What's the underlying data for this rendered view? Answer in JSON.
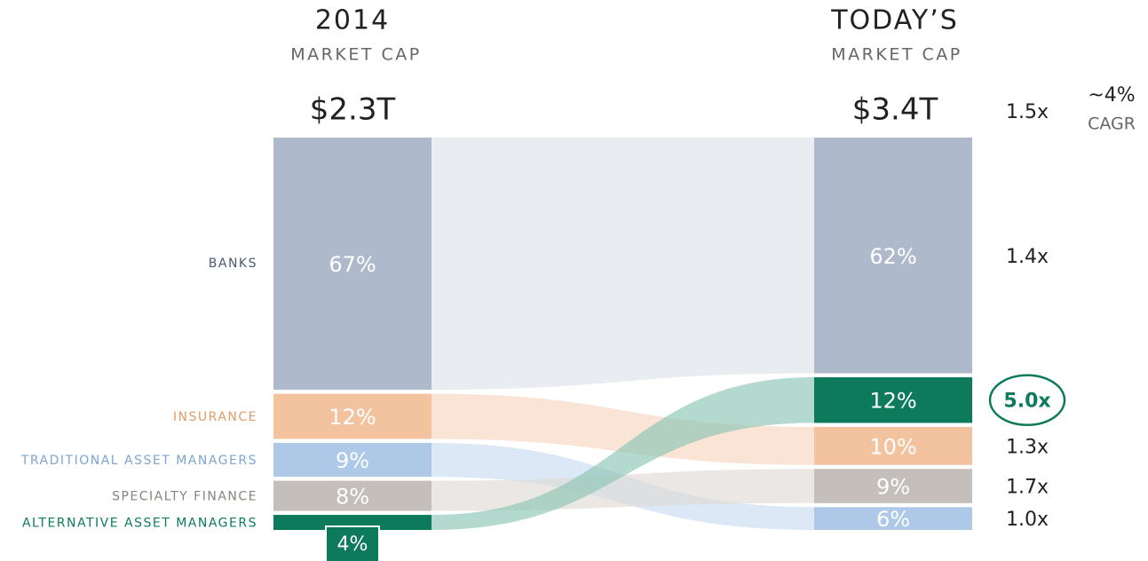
{
  "chart_data": {
    "type": "alluvial",
    "columns": [
      {
        "title": "2014",
        "subtitle": "MARKET CAP",
        "total_label": "$2.3T"
      },
      {
        "title": "TODAY’S",
        "subtitle": "MARKET CAP",
        "total_label": "$3.4T"
      }
    ],
    "series": [
      {
        "name": "BANKS",
        "color": "#aebacb",
        "label_color": "#4a5a75",
        "flow_color": "#e3e8ee",
        "values": [
          67,
          62
        ],
        "value_labels": [
          "67%",
          "62%"
        ],
        "growth": "1.4x"
      },
      {
        "name": "INSURANCE",
        "color": "#f3c3a0",
        "label_color": "#e39a66",
        "flow_color": "#f6d6bf",
        "values": [
          12,
          10
        ],
        "value_labels": [
          "12%",
          "10%"
        ],
        "growth": "1.3x"
      },
      {
        "name": "TRADITIONAL ASSET MANAGERS",
        "color": "#aec8e8",
        "label_color": "#7ea5d6",
        "flow_color": "#cadcf0",
        "values": [
          9,
          6
        ],
        "value_labels": [
          "9%",
          "6%"
        ],
        "growth": "1.0x"
      },
      {
        "name": "SPECIALTY FINANCE",
        "color": "#c4bfba",
        "label_color": "#8a837d",
        "flow_color": "#dedad6",
        "values": [
          8,
          9
        ],
        "value_labels": [
          "8%",
          "9%"
        ],
        "growth": "1.7x"
      },
      {
        "name": "ALTERNATIVE ASSET MANAGERS",
        "color": "#0d7a5c",
        "label_color": "#0d7a5c",
        "flow_color": "#8cc4b3",
        "values": [
          4,
          12
        ],
        "value_labels": [
          "4%",
          "12%"
        ],
        "growth": "5.0x"
      }
    ],
    "right_order": [
      0,
      4,
      1,
      3,
      2
    ],
    "highlight": 4,
    "total_growth": "1.5x",
    "cagr_label": "~4%",
    "cagr_caption": "CAGR"
  }
}
